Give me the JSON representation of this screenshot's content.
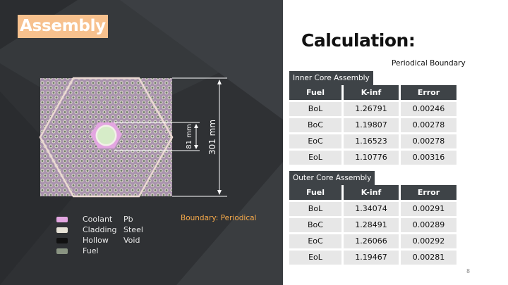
{
  "slide": {
    "title": "Assembly",
    "calc_title": "Calculation:",
    "boundary_label": "Periodical  Boundary",
    "page_number": "8",
    "boundary_note": "Boundary: Periodical"
  },
  "figure": {
    "dim_outer": "301 mm",
    "dim_inner": "81 mm"
  },
  "legend": [
    {
      "name": "Coolant",
      "material": "Pb",
      "color": "#e3a6e1"
    },
    {
      "name": "Cladding",
      "material": "Steel",
      "color": "#e6e2d6"
    },
    {
      "name": "Hollow",
      "material": "Void",
      "color": "#111111"
    },
    {
      "name": "Fuel",
      "material": "",
      "color": "#8a9482"
    }
  ],
  "inner_table": {
    "caption": "Inner Core Assembly",
    "headers": [
      "Fuel",
      "K-inf",
      "Error"
    ],
    "rows": [
      [
        "BoL",
        "1.26791",
        "0.00246"
      ],
      [
        "BoC",
        "1.19807",
        "0.00278"
      ],
      [
        "EoC",
        "1.16523",
        "0.00278"
      ],
      [
        "EoL",
        "1.10776",
        "0.00316"
      ]
    ]
  },
  "outer_table": {
    "caption": "Outer Core Assembly",
    "headers": [
      "Fuel",
      "K-inf",
      "Error"
    ],
    "rows": [
      [
        "BoL",
        "1.34074",
        "0.00291"
      ],
      [
        "BoC",
        "1.28491",
        "0.00289"
      ],
      [
        "EoC",
        "1.26066",
        "0.00292"
      ],
      [
        "EoL",
        "1.19467",
        "0.00281"
      ]
    ]
  },
  "colors": {
    "panel_bg": "#2f3134",
    "accent": "#f7c18e",
    "note": "#f5a94a",
    "table_header": "#3e4347",
    "table_cell": "#e7e7e7"
  }
}
